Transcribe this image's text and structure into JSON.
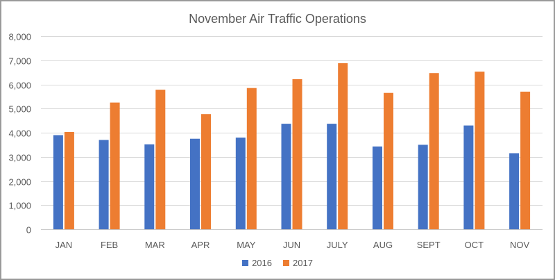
{
  "chart_data": {
    "type": "bar",
    "title": "November Air Traffic Operations",
    "xlabel": "",
    "ylabel": "",
    "ylim": [
      0,
      8000
    ],
    "yticks": [
      "0",
      "1,000",
      "2,000",
      "3,000",
      "4,000",
      "5,000",
      "6,000",
      "7,000",
      "8,000"
    ],
    "grid": true,
    "legend_position": "bottom",
    "categories": [
      "JAN",
      "FEB",
      "MAR",
      "APR",
      "MAY",
      "JUN",
      "JULY",
      "AUG",
      "SEPT",
      "OCT",
      "NOV"
    ],
    "series": [
      {
        "name": "2016",
        "color": "#4472C4",
        "values": [
          3900,
          3700,
          3520,
          3750,
          3800,
          4370,
          4370,
          3430,
          3500,
          4300,
          3150
        ]
      },
      {
        "name": "2017",
        "color": "#ED7D31",
        "values": [
          4030,
          5250,
          5780,
          4770,
          5850,
          6220,
          6880,
          5650,
          6470,
          6530,
          5700
        ]
      }
    ]
  }
}
